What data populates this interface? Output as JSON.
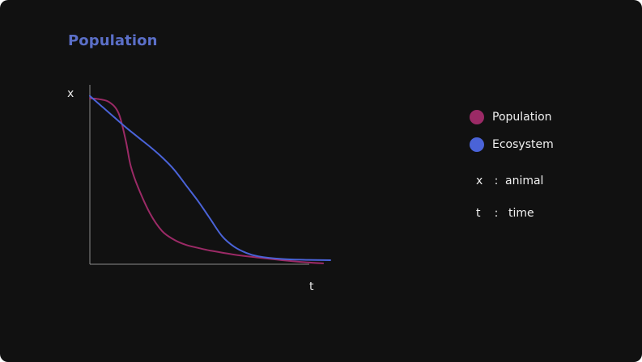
{
  "title": "Population",
  "colors": {
    "background": "#111111",
    "title": "#5b6fc8",
    "axis": "#8a8a8a",
    "text": "#f0f0f0"
  },
  "legend": [
    {
      "label": "Population",
      "color": "#9b2a66"
    },
    {
      "label": "Ecosystem",
      "color": "#4a63d8"
    }
  ],
  "definitions": [
    {
      "symbol": "x",
      "separator": ":",
      "meaning": "animal"
    },
    {
      "symbol": "t",
      "separator": ":",
      "meaning": "time"
    }
  ],
  "chart_data": {
    "type": "line",
    "title": "Population",
    "xlabel": "t",
    "ylabel": "x",
    "xlim": [
      0,
      100
    ],
    "ylim": [
      0,
      100
    ],
    "grid": false,
    "legend_position": "right",
    "series": [
      {
        "name": "Population",
        "color": "#9b2a66",
        "x": [
          0,
          3,
          8,
          12,
          15,
          17,
          20,
          25,
          30,
          35,
          40,
          45,
          50,
          60,
          70,
          80,
          90,
          97
        ],
        "y": [
          94.5,
          94.3,
          92.5,
          86,
          70,
          56,
          44,
          29,
          19,
          14,
          11,
          9.3,
          7.8,
          5.5,
          3.8,
          2.3,
          1.1,
          0.5
        ]
      },
      {
        "name": "Ecosystem",
        "color": "#4a63d8",
        "x": [
          0,
          5,
          10,
          15,
          20,
          25,
          30,
          35,
          40,
          45,
          50,
          55,
          60,
          65,
          70,
          80,
          90,
          100
        ],
        "y": [
          96,
          90,
          84,
          78,
          72.5,
          67,
          61,
          54,
          45,
          36,
          26,
          16,
          10,
          6.5,
          4.5,
          3,
          2.5,
          2.3
        ]
      }
    ]
  }
}
